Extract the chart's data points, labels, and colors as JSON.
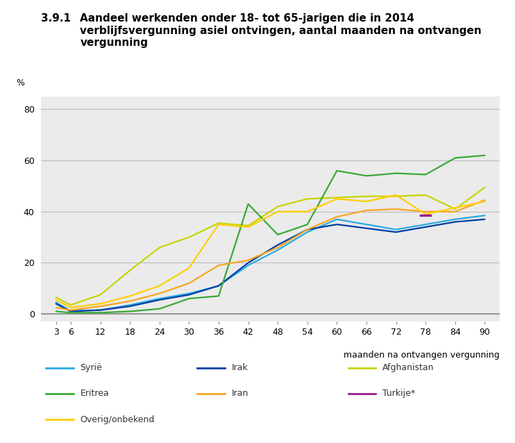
{
  "title_number": "3.9.1",
  "title_line1": "Aandeel werkenden onder 18- tot 65-jarigen die in 2014",
  "title_line2": "verblijfsvergunning asiel ontvingen, aantal maanden na ontvangen",
  "title_line3": "vergunning",
  "ylabel": "%",
  "xlabel": "maanden na ontvangen vergunning",
  "x_ticks": [
    3,
    6,
    12,
    18,
    24,
    30,
    36,
    42,
    48,
    54,
    60,
    66,
    72,
    78,
    84,
    90
  ],
  "ylim": [
    -3,
    85
  ],
  "yticks": [
    0,
    20,
    40,
    60,
    80
  ],
  "series": {
    "Syrië": {
      "color": "#29ABE2",
      "data": [
        4.5,
        1.2,
        1.5,
        3.5,
        6.0,
        8.0,
        11.0,
        19.0,
        25.0,
        32.0,
        37.0,
        35.0,
        33.0,
        35.0,
        37.0,
        38.5
      ]
    },
    "Irak": {
      "color": "#003DA5",
      "data": [
        4.0,
        1.0,
        1.5,
        3.0,
        5.5,
        7.5,
        11.0,
        20.0,
        27.0,
        33.0,
        35.0,
        33.5,
        32.0,
        34.0,
        36.0,
        37.0
      ]
    },
    "Afghanistan": {
      "color": "#C8D400",
      "data": [
        6.5,
        3.5,
        7.5,
        17.0,
        26.0,
        30.0,
        35.5,
        34.5,
        42.0,
        45.0,
        45.5,
        46.0,
        46.0,
        46.5,
        41.0,
        49.5
      ]
    },
    "Eritrea": {
      "color": "#39A935",
      "data": [
        1.0,
        0.5,
        0.5,
        1.0,
        2.0,
        6.0,
        7.0,
        43.0,
        31.0,
        35.0,
        56.0,
        54.0,
        55.0,
        54.5,
        61.0,
        62.0
      ]
    },
    "Iran": {
      "color": "#F5A623",
      "data": [
        2.5,
        1.5,
        3.0,
        5.0,
        8.0,
        12.0,
        19.0,
        21.0,
        26.0,
        33.0,
        38.0,
        40.5,
        41.0,
        40.0,
        40.0,
        44.5
      ]
    },
    "Turkije*": {
      "color": "#9B1B8E",
      "data": [
        null,
        null,
        null,
        null,
        null,
        null,
        null,
        null,
        null,
        null,
        null,
        null,
        null,
        38.5,
        null,
        null
      ]
    },
    "Overig/onbekend": {
      "color": "#FFCF00",
      "data": [
        5.5,
        2.5,
        4.0,
        7.0,
        11.0,
        18.0,
        35.0,
        34.0,
        40.0,
        40.0,
        45.0,
        44.0,
        46.5,
        39.0,
        41.5,
        44.0
      ]
    }
  },
  "chart_bg_color": "#EBEBEB",
  "grid_color": "#BBBBBB",
  "title_fontsize": 11,
  "axis_fontsize": 9,
  "legend_fontsize": 9,
  "line_width": 1.6
}
